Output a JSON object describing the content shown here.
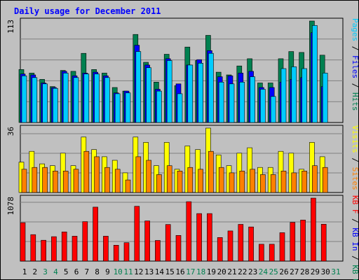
{
  "chart_data": {
    "type": "bar",
    "title": "Daily usage for December 2011",
    "x": [
      1,
      2,
      3,
      4,
      5,
      6,
      7,
      8,
      9,
      10,
      11,
      12,
      13,
      14,
      15,
      16,
      17,
      18,
      19,
      20,
      21,
      22,
      23,
      24,
      25,
      26,
      27,
      28,
      29,
      30,
      31
    ],
    "weekend_days": [
      3,
      4,
      10,
      11,
      17,
      18,
      24,
      25,
      31
    ],
    "panels": [
      {
        "id": "hits_panel",
        "ymax": 113,
        "ymax_label": "113",
        "axis_label_parts": [
          {
            "text": "Pages",
            "color": "#00ccff"
          },
          {
            "text": " / ",
            "color": "#000000"
          },
          {
            "text": "Files",
            "color": "#0000ff"
          },
          {
            "text": " / ",
            "color": "#000000"
          },
          {
            "text": "Hits",
            "color": "#008050"
          }
        ],
        "series": [
          {
            "name": "Hits",
            "color": "#008050",
            "offset": 0,
            "values": [
              59,
              55,
              48,
              40,
              58,
              57,
              77,
              59,
              55,
              39,
              35,
              98,
              67,
              45,
              76,
              41,
              84,
              69,
              97,
              56,
              53,
              63,
              71,
              44,
              44,
              71,
              79,
              78,
              113,
              75,
              0
            ]
          },
          {
            "name": "Files",
            "color": "#0000ff",
            "offset": 1,
            "values": [
              54,
              53,
              44,
              39,
              57,
              52,
              55,
              56,
              52,
              33,
              35,
              86,
              64,
              37,
              71,
              43,
              64,
              70,
              80,
              51,
              52,
              55,
              57,
              39,
              39,
              45,
              48,
              50,
              100,
              40,
              0
            ]
          },
          {
            "name": "Pages",
            "color": "#00ccff",
            "offset": 2,
            "values": [
              52,
              50,
              43,
              38,
              55,
              50,
              54,
              54,
              50,
              32,
              33,
              79,
              61,
              35,
              69,
              32,
              64,
              66,
              77,
              45,
              43,
              45,
              51,
              37,
              29,
              60,
              62,
              60,
              108,
              55,
              0
            ]
          }
        ]
      },
      {
        "id": "visits_panel",
        "ymax": 36,
        "ymax_label": "36",
        "axis_label_parts": [
          {
            "text": "Visits",
            "color": "#ffff00"
          },
          {
            "text": " / ",
            "color": "#000000"
          },
          {
            "text": "Sites",
            "color": "#ff8000"
          }
        ],
        "series": [
          {
            "name": "Visits",
            "color": "#ffff00",
            "offset": 0,
            "values": [
              17,
              23,
              16,
              15,
              22,
              15,
              31,
              24,
              20,
              18,
              11,
              31,
              28,
              15,
              28,
              13,
              26,
              24,
              36,
              21,
              15,
              22,
              25,
              14,
              14,
              23,
              22,
              13,
              28,
              20,
              0
            ]
          },
          {
            "name": "Sites",
            "color": "#ff8000",
            "offset": 2,
            "values": [
              13,
              14,
              14,
              12,
              12,
              13,
              23,
              20,
              14,
              13,
              7,
              20,
              18,
              10,
              15,
              12,
              14,
              13,
              23,
              14,
              11,
              12,
              13,
              10,
              10,
              12,
              11,
              12,
              15,
              14,
              0
            ]
          }
        ]
      },
      {
        "id": "kbytes_panel",
        "ymax": 1078,
        "ymax_label": "1078",
        "axis_label_parts": [
          {
            "text": "KB F",
            "color": "#ff0000"
          },
          {
            "text": " / ",
            "color": "#000000"
          },
          {
            "text": "KB In",
            "color": "#0000ff"
          },
          {
            "text": " / ",
            "color": "#000000"
          },
          {
            "text": "KB Out",
            "color": "#008050"
          }
        ],
        "series": [
          {
            "name": "KB F",
            "color": "#ff0000",
            "offset": 1,
            "values": [
              658,
              453,
              357,
              418,
              500,
              427,
              675,
              924,
              426,
              272,
              315,
              938,
              688,
              353,
              627,
              439,
              1017,
              813,
              813,
              404,
              516,
              629,
              585,
              289,
              289,
              486,
              664,
              703,
              1078,
              631,
              0
            ]
          }
        ]
      }
    ]
  }
}
